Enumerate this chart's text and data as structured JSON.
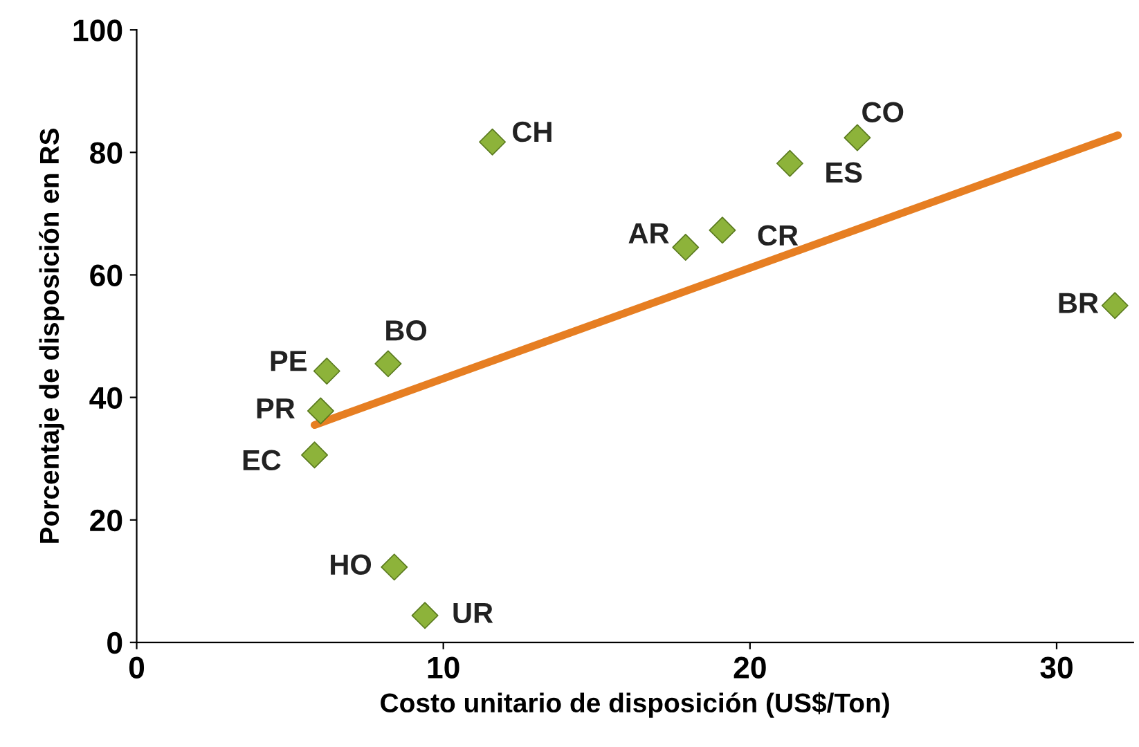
{
  "chart_data": {
    "type": "scatter",
    "xlabel": "Costo unitario de disposición (US$/Ton)",
    "ylabel": "Porcentaje de disposición en RS",
    "xlim": [
      0,
      32.5
    ],
    "ylim": [
      0,
      100
    ],
    "xticks": [
      0,
      10,
      20,
      30
    ],
    "yticks": [
      0,
      20,
      40,
      60,
      80,
      100
    ],
    "grid": false,
    "legend": false,
    "marker": "diamond",
    "series": [
      {
        "color": "#8db33a",
        "x": [
          11.6,
          23.5,
          21.3,
          17.9,
          19.1,
          31.9,
          8.2,
          6.2,
          6.0,
          5.8,
          8.4,
          9.4
        ],
        "values": [
          81.7,
          82.4,
          78.2,
          64.5,
          67.3,
          55.0,
          45.5,
          44.3,
          37.8,
          30.6,
          12.3,
          4.4
        ]
      },
      {
        "type": "line",
        "color": "#e67e22",
        "line_style": "solid",
        "marker": "none",
        "x": [
          5.8,
          32.0
        ],
        "values": [
          35.5,
          82.8
        ]
      }
    ],
    "annotations": [
      {
        "text": "CH",
        "x": 11.6,
        "y": 81.7
      },
      {
        "text": "CO",
        "x": 23.5,
        "y": 82.4
      },
      {
        "text": "ES",
        "x": 21.3,
        "y": 78.2
      },
      {
        "text": "AR",
        "x": 17.9,
        "y": 64.5
      },
      {
        "text": "CR",
        "x": 19.1,
        "y": 67.3
      },
      {
        "text": "BR",
        "x": 31.9,
        "y": 55.0
      },
      {
        "text": "BO",
        "x": 8.2,
        "y": 45.5
      },
      {
        "text": "PE",
        "x": 6.2,
        "y": 44.3
      },
      {
        "text": "PR",
        "x": 6.0,
        "y": 37.8
      },
      {
        "text": "EC",
        "x": 5.8,
        "y": 30.6
      },
      {
        "text": "HO",
        "x": 8.4,
        "y": 12.3
      },
      {
        "text": "UR",
        "x": 9.4,
        "y": 4.4
      }
    ]
  }
}
